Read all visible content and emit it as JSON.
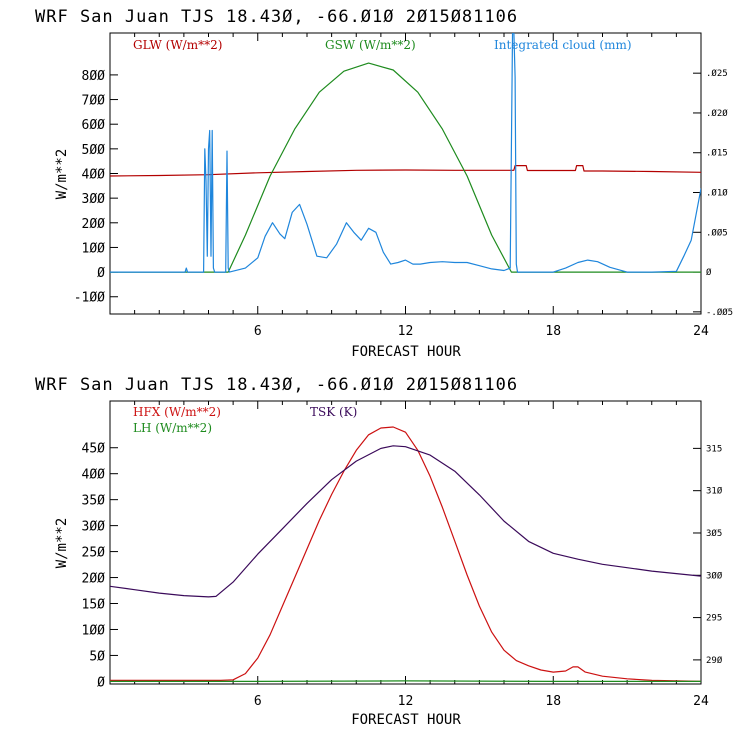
{
  "colors": {
    "glw": "#b30000",
    "gsw": "#1e8b1e",
    "cloud": "#1f86dc",
    "hfx": "#cc1111",
    "lh": "#1e8b1e",
    "tsk": "#3a0a5a",
    "axis": "#000000"
  },
  "chart_data": [
    {
      "type": "line",
      "title": "WRF  San Juan TJS  18.43Ø, -66.Ø1Ø  2Ø15Ø81106",
      "xlabel": "FORECAST HOUR",
      "ylabel": "W/m**2",
      "y2label": "",
      "xlim": [
        0,
        24
      ],
      "ylim": [
        -170,
        970
      ],
      "y2lim": [
        -0.00527,
        0.03005
      ],
      "xticks": [
        6,
        12,
        18,
        24
      ],
      "xticklabels": [
        "6",
        "12",
        "18",
        "24"
      ],
      "yticks": [
        -100,
        0,
        100,
        200,
        300,
        400,
        500,
        600,
        700,
        800
      ],
      "yticklabels": [
        "-1ØØ",
        "Ø",
        "1ØØ",
        "2ØØ",
        "3ØØ",
        "4ØØ",
        "5ØØ",
        "6ØØ",
        "7ØØ",
        "8ØØ"
      ],
      "y2ticks": [
        -0.005,
        0,
        0.005,
        0.01,
        0.015,
        0.02,
        0.025
      ],
      "y2ticklabels": [
        "-.ØØ5",
        "Ø",
        ".ØØ5",
        ".Ø1Ø",
        ".Ø15",
        ".Ø2Ø",
        ".Ø25"
      ],
      "grid": false,
      "legend": "top",
      "series": [
        {
          "name": "GLW (W/m**2)",
          "axis": "left",
          "color_key": "glw",
          "x": [
            0,
            2,
            4,
            6,
            8,
            10,
            12,
            14,
            16,
            16.4,
            16.45,
            16.9,
            16.95,
            18.9,
            18.95,
            19.2,
            19.25,
            20,
            22,
            24
          ],
          "y": [
            390,
            392,
            395,
            403,
            408,
            413,
            414,
            413,
            413,
            413,
            432,
            432,
            412,
            412,
            432,
            432,
            410,
            410,
            408,
            405
          ]
        },
        {
          "name": "GSW (W/m**2)",
          "axis": "left",
          "color_key": "gsw",
          "x": [
            0,
            4.8,
            5.5,
            6.5,
            7.5,
            8.5,
            9.5,
            10.5,
            11.5,
            12.5,
            13.5,
            14.5,
            15.5,
            16.3,
            24
          ],
          "y": [
            0,
            0,
            150,
            390,
            580,
            730,
            815,
            848,
            820,
            730,
            580,
            390,
            150,
            0,
            0
          ]
        },
        {
          "name": "Integrated cloud (mm)",
          "axis": "right",
          "color_key": "cloud",
          "x": [
            0,
            3.05,
            3.1,
            3.15,
            3.8,
            3.85,
            3.9,
            3.95,
            4.0,
            4.05,
            4.1,
            4.15,
            4.2,
            4.25,
            4.3,
            4.35,
            4.7,
            4.75,
            4.8,
            4.85,
            5.5,
            6.0,
            6.3,
            6.6,
            6.9,
            7.1,
            7.4,
            7.7,
            8.0,
            8.4,
            8.8,
            9.2,
            9.6,
            9.9,
            10.2,
            10.5,
            10.8,
            11.1,
            11.4,
            11.7,
            12.0,
            12.3,
            12.6,
            13.0,
            13.5,
            14.0,
            14.5,
            15.0,
            15.5,
            16.0,
            16.25,
            16.35,
            16.4,
            16.45,
            16.5,
            16.55,
            16.7,
            16.9,
            17.5,
            18.0,
            18.5,
            19.0,
            19.4,
            19.8,
            20.3,
            21.0,
            22.0,
            23.0,
            23.3,
            23.6,
            24.0
          ],
          "y": [
            0,
            0,
            0.0005,
            0,
            0,
            0.0155,
            0.0115,
            0.002,
            0.0155,
            0.0178,
            0.002,
            0.0178,
            0.0005,
            0,
            0,
            0,
            0,
            0.0152,
            0.0005,
            0,
            0.0005,
            0.0018,
            0.0045,
            0.0062,
            0.0048,
            0.0042,
            0.0075,
            0.0085,
            0.006,
            0.002,
            0.0018,
            0.0035,
            0.0062,
            0.005,
            0.004,
            0.0055,
            0.005,
            0.0025,
            0.001,
            0.0012,
            0.0015,
            0.001,
            0.001,
            0.0012,
            0.0013,
            0.0012,
            0.0012,
            0.0008,
            0.0004,
            0.0002,
            0.0005,
            0.031,
            0.0305,
            0.0245,
            0.001,
            0,
            0,
            0,
            0,
            0,
            0.0005,
            0.0012,
            0.0015,
            0.0013,
            0.0006,
            0,
            0,
            0.0001,
            0.002,
            0.004,
            0.0105
          ]
        }
      ]
    },
    {
      "type": "line",
      "title": "WRF  San Juan TJS  18.43Ø, -66.Ø1Ø  2Ø15Ø81106",
      "xlabel": "FORECAST HOUR",
      "ylabel": "W/m**2",
      "y2label": "",
      "xlim": [
        0,
        24
      ],
      "ylim": [
        -5,
        540
      ],
      "y2lim": [
        287.15,
        320.6
      ],
      "xticks": [
        6,
        12,
        18,
        24
      ],
      "xticklabels": [
        "6",
        "12",
        "18",
        "24"
      ],
      "yticks": [
        0,
        50,
        100,
        150,
        200,
        250,
        300,
        350,
        400,
        450
      ],
      "yticklabels": [
        "Ø",
        "5Ø",
        "1ØØ",
        "15Ø",
        "2ØØ",
        "25Ø",
        "3ØØ",
        "35Ø",
        "4ØØ",
        "45Ø"
      ],
      "y2ticks": [
        290,
        295,
        300,
        305,
        310,
        315
      ],
      "y2ticklabels": [
        "29Ø",
        "295",
        "3ØØ",
        "3Ø5",
        "31Ø",
        "315"
      ],
      "grid": false,
      "legend": "top-left",
      "series": [
        {
          "name": "HFX (W/m**2)",
          "axis": "left",
          "color_key": "hfx",
          "x": [
            0,
            4.5,
            5.0,
            5.5,
            6.0,
            6.5,
            7.0,
            7.5,
            8.0,
            8.5,
            9.0,
            9.5,
            10.0,
            10.5,
            11.0,
            11.5,
            12.0,
            12.5,
            13.0,
            13.5,
            14.0,
            14.5,
            15.0,
            15.5,
            16.0,
            16.5,
            17.0,
            17.5,
            18.0,
            18.5,
            18.8,
            19.0,
            19.3,
            20.0,
            21.0,
            22.0,
            23.0,
            24.0
          ],
          "y": [
            2,
            2,
            3,
            15,
            45,
            90,
            145,
            200,
            255,
            310,
            360,
            405,
            445,
            475,
            488,
            490,
            480,
            445,
            395,
            335,
            270,
            205,
            145,
            95,
            60,
            40,
            30,
            22,
            18,
            20,
            28,
            28,
            18,
            10,
            5,
            2,
            1,
            0
          ]
        },
        {
          "name": "LH (W/m**2)",
          "axis": "left",
          "color_key": "lh",
          "x": [
            0,
            6,
            12,
            18,
            24
          ],
          "y": [
            0,
            0,
            1,
            0,
            0
          ]
        },
        {
          "name": "TSK (K)",
          "axis": "right",
          "color_key": "tsk",
          "x": [
            0,
            1,
            2,
            3,
            4,
            4.3,
            5,
            6,
            7,
            8,
            9,
            10,
            11,
            11.5,
            12,
            13,
            14,
            15,
            16,
            17,
            18,
            19,
            20,
            21,
            22,
            23,
            24
          ],
          "y": [
            298.7,
            298.3,
            297.9,
            297.6,
            297.45,
            297.5,
            299.2,
            302.5,
            305.5,
            308.5,
            311.3,
            313.5,
            315.0,
            315.3,
            315.2,
            314.2,
            312.3,
            309.5,
            306.4,
            304.0,
            302.6,
            301.9,
            301.3,
            300.9,
            300.5,
            300.2,
            299.9
          ]
        }
      ]
    }
  ]
}
